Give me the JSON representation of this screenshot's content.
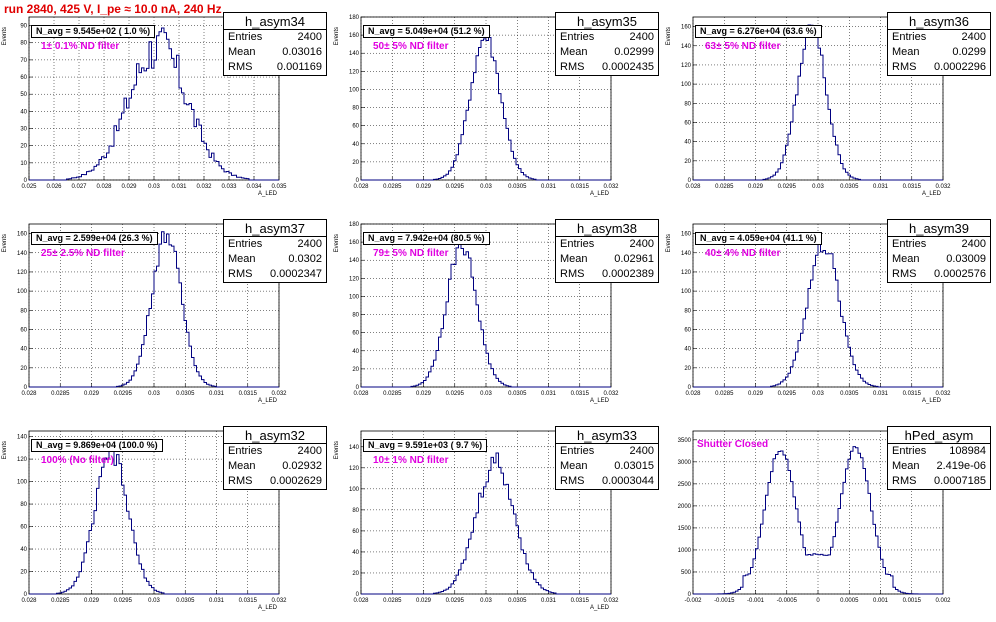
{
  "run_title": "run 2840,   425 V, I_pe ≈ 10.0 nA, 240 Hz",
  "chart_data": [
    {
      "type": "histogram",
      "name": "h_asym34",
      "entries": "2400",
      "mean": "0.03016",
      "rms": "0.001169",
      "n_avg": "N_avg = 9.545e+02 ( 1.0 %)",
      "filter": "1± 0.1% ND filter",
      "xlim": [
        0.025,
        0.035
      ],
      "ylim": [
        0,
        95
      ],
      "xticks": [
        0.025,
        0.026,
        0.027,
        0.028,
        0.029,
        0.03,
        0.031,
        0.032,
        0.033,
        0.034,
        0.035
      ],
      "yticks": [
        0,
        10,
        20,
        30,
        40,
        50,
        60,
        70,
        80,
        90
      ],
      "ylabel": "Events",
      "xlabel": "A_LED",
      "dist": {
        "mu": 0.03016,
        "sigma": 0.00117,
        "peak": 78,
        "bin": 0.0001,
        "noise": 0.18
      }
    },
    {
      "type": "histogram",
      "name": "h_asym35",
      "entries": "2400",
      "mean": "0.02999",
      "rms": "0.0002435",
      "n_avg": "N_avg = 5.049e+04 (51.2 %)",
      "filter": "50± 5% ND filter",
      "xlim": [
        0.028,
        0.032
      ],
      "ylim": [
        0,
        180
      ],
      "xticks": [
        0.028,
        0.0285,
        0.029,
        0.0295,
        0.03,
        0.0305,
        0.031,
        0.0315,
        0.032
      ],
      "yticks": [
        0,
        20,
        40,
        60,
        80,
        100,
        120,
        140,
        160,
        180
      ],
      "ylabel": "Events",
      "xlabel": "A_LED",
      "dist": {
        "mu": 0.02999,
        "sigma": 0.000243,
        "peak": 158,
        "bin": 4e-05,
        "noise": 0.06
      }
    },
    {
      "type": "histogram",
      "name": "h_asym36",
      "entries": "2400",
      "mean": "0.0299",
      "rms": "0.0002296",
      "n_avg": "N_avg = 6.276e+04 (63.6 %)",
      "filter": "63± 5% ND filter",
      "xlim": [
        0.028,
        0.032
      ],
      "ylim": [
        0,
        170
      ],
      "xticks": [
        0.028,
        0.0285,
        0.029,
        0.0295,
        0.03,
        0.0305,
        0.031,
        0.0315,
        0.032
      ],
      "yticks": [
        0,
        20,
        40,
        60,
        80,
        100,
        120,
        140,
        160
      ],
      "ylabel": "Events",
      "xlabel": "A_LED",
      "dist": {
        "mu": 0.0299,
        "sigma": 0.00023,
        "peak": 158,
        "bin": 4e-05,
        "noise": 0.06
      }
    },
    {
      "type": "histogram",
      "name": "h_asym37",
      "entries": "2400",
      "mean": "0.0302",
      "rms": "0.0002347",
      "n_avg": "N_avg = 2.599e+04 (26.3 %)",
      "filter": "25± 2.5% ND filter",
      "xlim": [
        0.028,
        0.032
      ],
      "ylim": [
        0,
        170
      ],
      "xticks": [
        0.028,
        0.0285,
        0.029,
        0.0295,
        0.03,
        0.0305,
        0.031,
        0.0315,
        0.032
      ],
      "yticks": [
        0,
        20,
        40,
        60,
        80,
        100,
        120,
        140,
        160
      ],
      "ylabel": "Events",
      "xlabel": "A_LED",
      "dist": {
        "mu": 0.0302,
        "sigma": 0.000235,
        "peak": 160,
        "bin": 4e-05,
        "noise": 0.06
      }
    },
    {
      "type": "histogram",
      "name": "h_asym38",
      "entries": "2400",
      "mean": "0.02961",
      "rms": "0.0002389",
      "n_avg": "N_avg = 7.942e+04 (80.5 %)",
      "filter": "79± 5% ND filter",
      "xlim": [
        0.028,
        0.032
      ],
      "ylim": [
        0,
        180
      ],
      "xticks": [
        0.028,
        0.0285,
        0.029,
        0.0295,
        0.03,
        0.0305,
        0.031,
        0.0315,
        0.032
      ],
      "yticks": [
        0,
        20,
        40,
        60,
        80,
        100,
        120,
        140,
        160,
        180
      ],
      "ylabel": "Events",
      "xlabel": "A_LED",
      "dist": {
        "mu": 0.02961,
        "sigma": 0.000239,
        "peak": 158,
        "bin": 4e-05,
        "noise": 0.06
      }
    },
    {
      "type": "histogram",
      "name": "h_asym39",
      "entries": "2400",
      "mean": "0.03009",
      "rms": "0.0002576",
      "n_avg": "N_avg = 4.059e+04 (41.1 %)",
      "filter": "40± 4% ND filter",
      "xlim": [
        0.028,
        0.032
      ],
      "ylim": [
        0,
        170
      ],
      "xticks": [
        0.028,
        0.0285,
        0.029,
        0.0295,
        0.03,
        0.0305,
        0.031,
        0.0315,
        0.032
      ],
      "yticks": [
        0,
        20,
        40,
        60,
        80,
        100,
        120,
        140,
        160
      ],
      "ylabel": "Events",
      "xlabel": "A_LED",
      "dist": {
        "mu": 0.03009,
        "sigma": 0.000258,
        "peak": 148,
        "bin": 4e-05,
        "noise": 0.07
      }
    },
    {
      "type": "histogram",
      "name": "h_asym32",
      "entries": "2400",
      "mean": "0.02932",
      "rms": "0.0002629",
      "n_avg": "N_avg = 9.869e+04 (100.0 %)",
      "filter": "100% (No filter)",
      "xlim": [
        0.028,
        0.032
      ],
      "ylim": [
        0,
        145
      ],
      "xticks": [
        0.028,
        0.0285,
        0.029,
        0.0295,
        0.03,
        0.0305,
        0.031,
        0.0315,
        0.032
      ],
      "yticks": [
        0,
        20,
        40,
        60,
        80,
        100,
        120,
        140
      ],
      "ylabel": "Events",
      "xlabel": "A_LED",
      "dist": {
        "mu": 0.02932,
        "sigma": 0.000263,
        "peak": 125,
        "bin": 4e-05,
        "noise": 0.07
      }
    },
    {
      "type": "histogram",
      "name": "h_asym33",
      "entries": "2400",
      "mean": "0.03015",
      "rms": "0.0003044",
      "n_avg": "N_avg = 9.591e+03 ( 9.7 %)",
      "filter": "10± 1% ND filter",
      "xlim": [
        0.028,
        0.032
      ],
      "ylim": [
        0,
        155
      ],
      "xticks": [
        0.028,
        0.0285,
        0.029,
        0.0295,
        0.03,
        0.0305,
        0.031,
        0.0315,
        0.032
      ],
      "yticks": [
        0,
        20,
        40,
        60,
        80,
        100,
        120,
        140
      ],
      "ylabel": "Events",
      "xlabel": "A_LED",
      "dist": {
        "mu": 0.03015,
        "sigma": 0.000304,
        "peak": 125,
        "bin": 4e-05,
        "noise": 0.09
      }
    },
    {
      "type": "histogram",
      "name": "hPed_asym",
      "entries": "108984",
      "mean": "2.419e-06",
      "rms": "0.0007185",
      "n_avg": "",
      "filter": "Shutter Closed",
      "xlim": [
        -0.002,
        0.002
      ],
      "ylim": [
        0,
        3700
      ],
      "xticks": [
        -0.002,
        -0.0015,
        -0.001,
        -0.0005,
        0,
        0.0005,
        0.001,
        0.0015,
        0.002
      ],
      "yticks": [
        0,
        500,
        1000,
        1500,
        2000,
        2500,
        3000,
        3500
      ],
      "ylabel": "",
      "xlabel": "",
      "dist": {
        "bimodal": true,
        "mu1": -0.0006,
        "mu2": 0.0006,
        "sigma": 0.00025,
        "peak": 3300,
        "bin": 4e-05,
        "noise": 0.02
      }
    }
  ],
  "colors": {
    "hist": "#000080",
    "title": "#e00000",
    "filter": "#e000e0",
    "grid": "#000000"
  }
}
